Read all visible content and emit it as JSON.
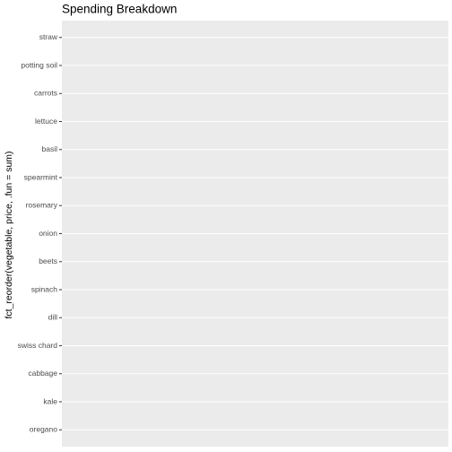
{
  "chart_data": {
    "type": "bar",
    "orientation": "horizontal",
    "title": "Spending Breakdown",
    "y_label": "fct_reorder(vegetable, price, .fun = sum)",
    "categories": [
      "straw",
      "potting soil",
      "carrots",
      "lettuce",
      "basil",
      "spearmint",
      "rosemary",
      "onion",
      "beets",
      "spinach",
      "dill",
      "swiss chard",
      "cabbage",
      "kale",
      "oregano"
    ],
    "grid": true
  }
}
